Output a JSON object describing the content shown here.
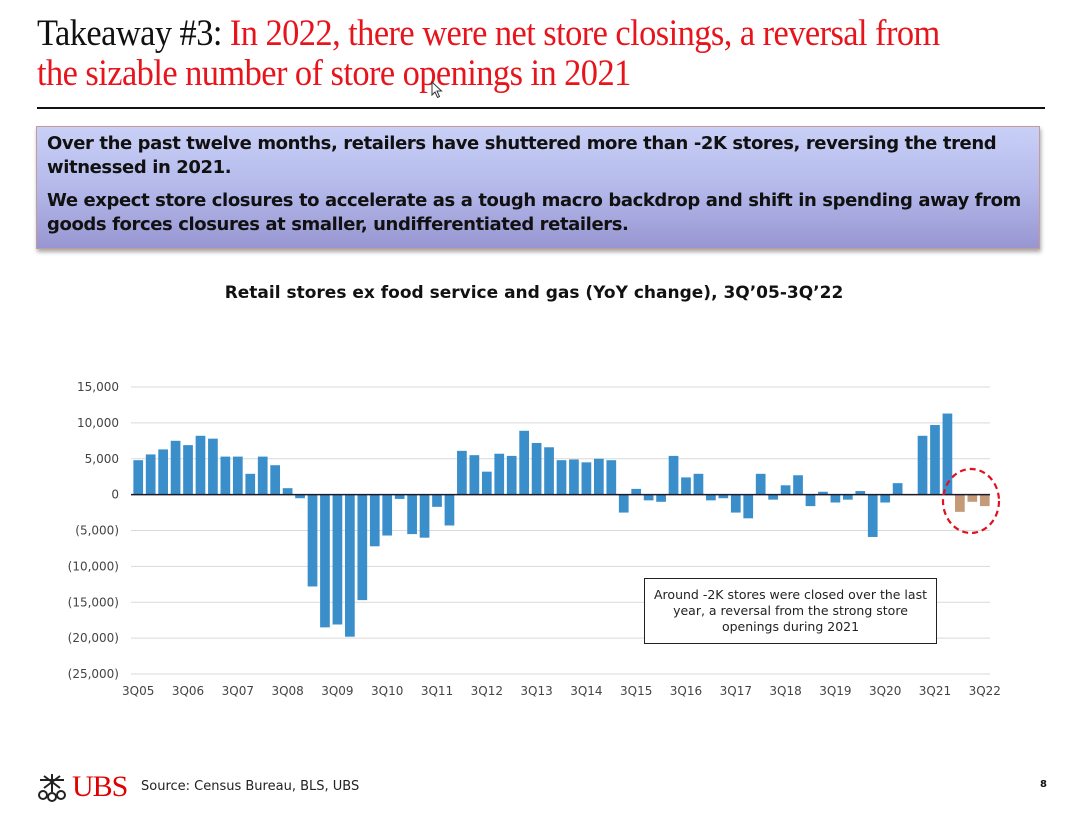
{
  "slide": {
    "title_lead": "Takeaway #3: ",
    "title_rest": "In 2022, there were net store closings, a reversal from the sizable number of store openings in 2021",
    "callout": [
      "Over the past twelve months, retailers have shuttered more than -2K stores, reversing the trend witnessed in 2021.",
      "We expect store closures to accelerate as a tough macro backdrop and shift in spending away from goods forces closures at smaller, undifferentiated retailers."
    ],
    "annotation": "Around -2K stores were closed over the last year, a reversal from the strong store openings during 2021",
    "footer": {
      "logo_text": "UBS",
      "source": "Source: Census Bureau, BLS, UBS",
      "page_number": "8"
    },
    "colors": {
      "title_red": "#e8141c",
      "bar_blue": "#3a8fcb",
      "bar_highlight": "#c49a78",
      "circle_red": "#e01020"
    }
  },
  "chart_data": {
    "type": "bar",
    "title": "Retail stores ex food service and gas (YoY change), 3Q’05-3Q’22",
    "xlabel": "",
    "ylabel": "",
    "ylim": [
      -25000,
      15000
    ],
    "yticks": [
      15000,
      10000,
      5000,
      0,
      -5000,
      -10000,
      -15000,
      -20000,
      -25000
    ],
    "ytick_labels": [
      "15,000",
      "10,000",
      "5,000",
      "0",
      "(5,000)",
      "(10,000)",
      "(15,000)",
      "(20,000)",
      "(25,000)"
    ],
    "xtick_labels": [
      "3Q05",
      "3Q06",
      "3Q07",
      "3Q08",
      "3Q09",
      "3Q10",
      "3Q11",
      "3Q12",
      "3Q13",
      "3Q14",
      "3Q15",
      "3Q16",
      "3Q17",
      "3Q18",
      "3Q19",
      "3Q20",
      "3Q21",
      "3Q22"
    ],
    "grid": true,
    "legend": "none",
    "first_quarter": "3Q05",
    "last_quarter": "3Q22",
    "highlight_last_n": 3,
    "values": [
      4800,
      5600,
      6300,
      7500,
      6900,
      8200,
      7800,
      5300,
      5300,
      2900,
      5300,
      4100,
      900,
      -500,
      -12800,
      -18500,
      -18100,
      -19800,
      -14700,
      -7200,
      -5700,
      -600,
      -5500,
      -6000,
      -1700,
      -4300,
      6100,
      5500,
      3200,
      5700,
      5400,
      8900,
      7200,
      6600,
      4800,
      4900,
      4500,
      5000,
      4800,
      -2500,
      800,
      -800,
      -1000,
      5400,
      2400,
      2900,
      -800,
      -500,
      -2500,
      -3300,
      2900,
      -700,
      1300,
      2700,
      -1600,
      400,
      -1100,
      -700,
      500,
      -5900,
      -1100,
      1600,
      0,
      8200,
      9700,
      11300,
      -2400,
      -1000,
      -1600
    ]
  }
}
